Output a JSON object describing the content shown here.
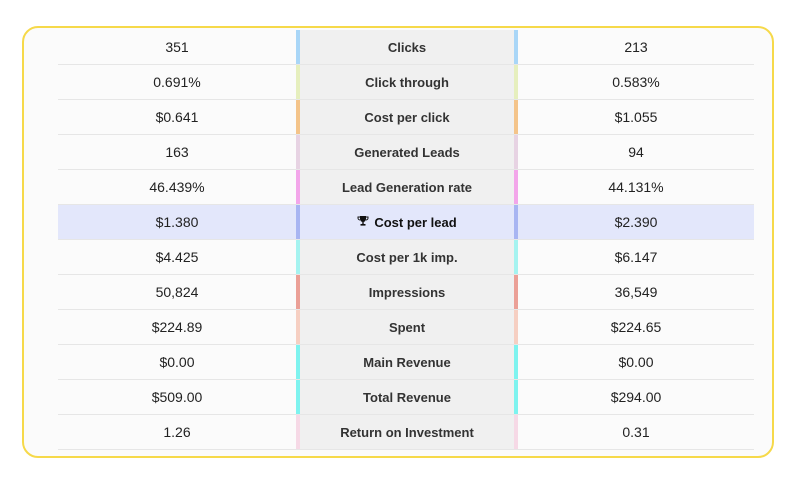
{
  "rows": [
    {
      "left": "351",
      "label": "Clicks",
      "right": "213",
      "color": "#a9d6f7",
      "icon": "",
      "highlight": false
    },
    {
      "left": "0.691%",
      "label": "Click through",
      "right": "0.583%",
      "color": "#e6efbe",
      "icon": "",
      "highlight": false
    },
    {
      "left": "$0.641",
      "label": "Cost per click",
      "right": "$1.055",
      "color": "#f4c48a",
      "icon": "",
      "highlight": false
    },
    {
      "left": "163",
      "label": "Generated Leads",
      "right": "94",
      "color": "#e7d3e3",
      "icon": "",
      "highlight": false
    },
    {
      "left": "46.439%",
      "label": "Lead Generation rate",
      "right": "44.131%",
      "color": "#f3a6ea",
      "icon": "",
      "highlight": false
    },
    {
      "left": "$1.380",
      "label": "Cost per lead",
      "right": "$2.390",
      "color": "#a8b5f2",
      "icon": "trophy-icon",
      "highlight": true
    },
    {
      "left": "$4.425",
      "label": "Cost per 1k imp.",
      "right": "$6.147",
      "color": "#a5f3f0",
      "icon": "",
      "highlight": false
    },
    {
      "left": "50,824",
      "label": "Impressions",
      "right": "36,549",
      "color": "#eba097",
      "icon": "",
      "highlight": false
    },
    {
      "left": "$224.89",
      "label": "Spent",
      "right": "$224.65",
      "color": "#f6cfc2",
      "icon": "",
      "highlight": false
    },
    {
      "left": "$0.00",
      "label": "Main Revenue",
      "right": "$0.00",
      "color": "#7ef3ef",
      "icon": "",
      "highlight": false
    },
    {
      "left": "$509.00",
      "label": "Total Revenue",
      "right": "$294.00",
      "color": "#7ef3ef",
      "icon": "",
      "highlight": false
    },
    {
      "left": "1.26",
      "label": "Return on Investment",
      "right": "0.31",
      "color": "#f6d9e6",
      "icon": "",
      "highlight": false
    }
  ],
  "colors": {
    "card_border": "#f6d94a",
    "highlight_row": "#e3e7fb",
    "label_column": "#f0f0f0"
  }
}
